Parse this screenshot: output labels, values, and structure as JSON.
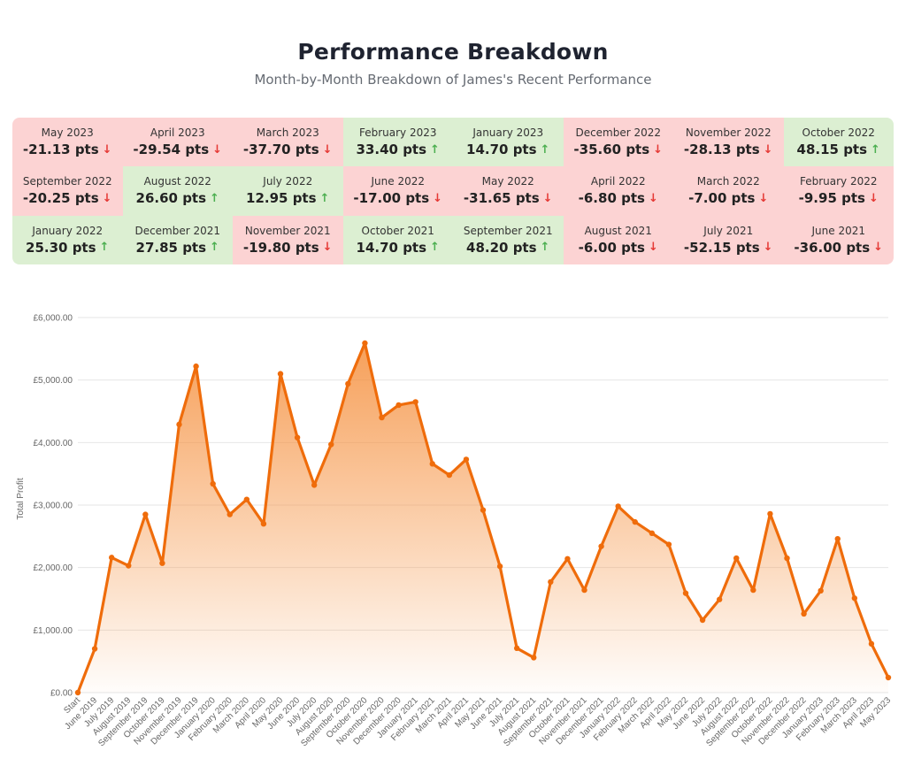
{
  "header": {
    "title": "Performance Breakdown",
    "subtitle": "Month-by-Month Breakdown of James's Recent Performance"
  },
  "breakdown": [
    {
      "month": "May 2023",
      "value": "-21.13 pts",
      "trend": "down"
    },
    {
      "month": "April 2023",
      "value": "-29.54 pts",
      "trend": "down"
    },
    {
      "month": "March 2023",
      "value": "-37.70 pts",
      "trend": "down"
    },
    {
      "month": "February 2023",
      "value": "33.40 pts",
      "trend": "up"
    },
    {
      "month": "January 2023",
      "value": "14.70 pts",
      "trend": "up"
    },
    {
      "month": "December 2022",
      "value": "-35.60 pts",
      "trend": "down"
    },
    {
      "month": "November 2022",
      "value": "-28.13 pts",
      "trend": "down"
    },
    {
      "month": "October 2022",
      "value": "48.15 pts",
      "trend": "up"
    },
    {
      "month": "September 2022",
      "value": "-20.25 pts",
      "trend": "down"
    },
    {
      "month": "August 2022",
      "value": "26.60 pts",
      "trend": "up"
    },
    {
      "month": "July 2022",
      "value": "12.95 pts",
      "trend": "up"
    },
    {
      "month": "June 2022",
      "value": "-17.00 pts",
      "trend": "down"
    },
    {
      "month": "May 2022",
      "value": "-31.65 pts",
      "trend": "down"
    },
    {
      "month": "April 2022",
      "value": "-6.80 pts",
      "trend": "down"
    },
    {
      "month": "March 2022",
      "value": "-7.00 pts",
      "trend": "down"
    },
    {
      "month": "February 2022",
      "value": "-9.95 pts",
      "trend": "down"
    },
    {
      "month": "January 2022",
      "value": "25.30 pts",
      "trend": "up"
    },
    {
      "month": "December 2021",
      "value": "27.85 pts",
      "trend": "up"
    },
    {
      "month": "November 2021",
      "value": "-19.80 pts",
      "trend": "down"
    },
    {
      "month": "October 2021",
      "value": "14.70 pts",
      "trend": "up"
    },
    {
      "month": "September 2021",
      "value": "48.20 pts",
      "trend": "up"
    },
    {
      "month": "August 2021",
      "value": "-6.00 pts",
      "trend": "down"
    },
    {
      "month": "July 2021",
      "value": "-52.15 pts",
      "trend": "down"
    },
    {
      "month": "June 2021",
      "value": "-36.00 pts",
      "trend": "down"
    }
  ],
  "colors": {
    "negative_bg": "#fcd3d3",
    "positive_bg": "#dcefd2",
    "down_arrow": "#e53935",
    "up_arrow": "#4caf50",
    "line": "#ef6c0b",
    "area": "#f79a4f"
  },
  "chart_data": {
    "type": "area",
    "ylabel": "Total Profit",
    "xlabel": "",
    "ylim": [
      0,
      6000
    ],
    "yticks": [
      0,
      1000,
      2000,
      3000,
      4000,
      5000,
      6000
    ],
    "ytick_labels": [
      "£0.00",
      "£1,000.00",
      "£2,000.00",
      "£3,000.00",
      "£4,000.00",
      "£5,000.00",
      "£6,000.00"
    ],
    "grid": true,
    "categories": [
      "Start",
      "June 2019",
      "July 2019",
      "August 2019",
      "September 2019",
      "October 2019",
      "November 2019",
      "December 2019",
      "January 2020",
      "February 2020",
      "March 2020",
      "April 2020",
      "May 2020",
      "June 2020",
      "July 2020",
      "August 2020",
      "September 2020",
      "October 2020",
      "November 2020",
      "December 2020",
      "January 2021",
      "February 2021",
      "March 2021",
      "April 2021",
      "May 2021",
      "June 2021",
      "July 2021",
      "August 2021",
      "September 2021",
      "October 2021",
      "November 2021",
      "December 2021",
      "January 2022",
      "February 2022",
      "March 2022",
      "April 2022",
      "May 2022",
      "June 2022",
      "July 2022",
      "August 2022",
      "September 2022",
      "October 2022",
      "November 2022",
      "December 2022",
      "January 2023",
      "February 2023",
      "March 2023",
      "April 2023",
      "May 2023"
    ],
    "values": [
      0,
      700,
      2160,
      2030,
      2850,
      2070,
      4290,
      5220,
      3340,
      2850,
      3090,
      2700,
      5100,
      4080,
      3320,
      3970,
      4940,
      5590,
      4400,
      4600,
      4650,
      3660,
      3480,
      3730,
      2920,
      2020,
      710,
      560,
      1770,
      2140,
      1640,
      2340,
      2980,
      2730,
      2550,
      2370,
      1590,
      1160,
      1490,
      2150,
      1640,
      2860,
      2150,
      1260,
      1630,
      2460,
      1510,
      780,
      240
    ]
  }
}
